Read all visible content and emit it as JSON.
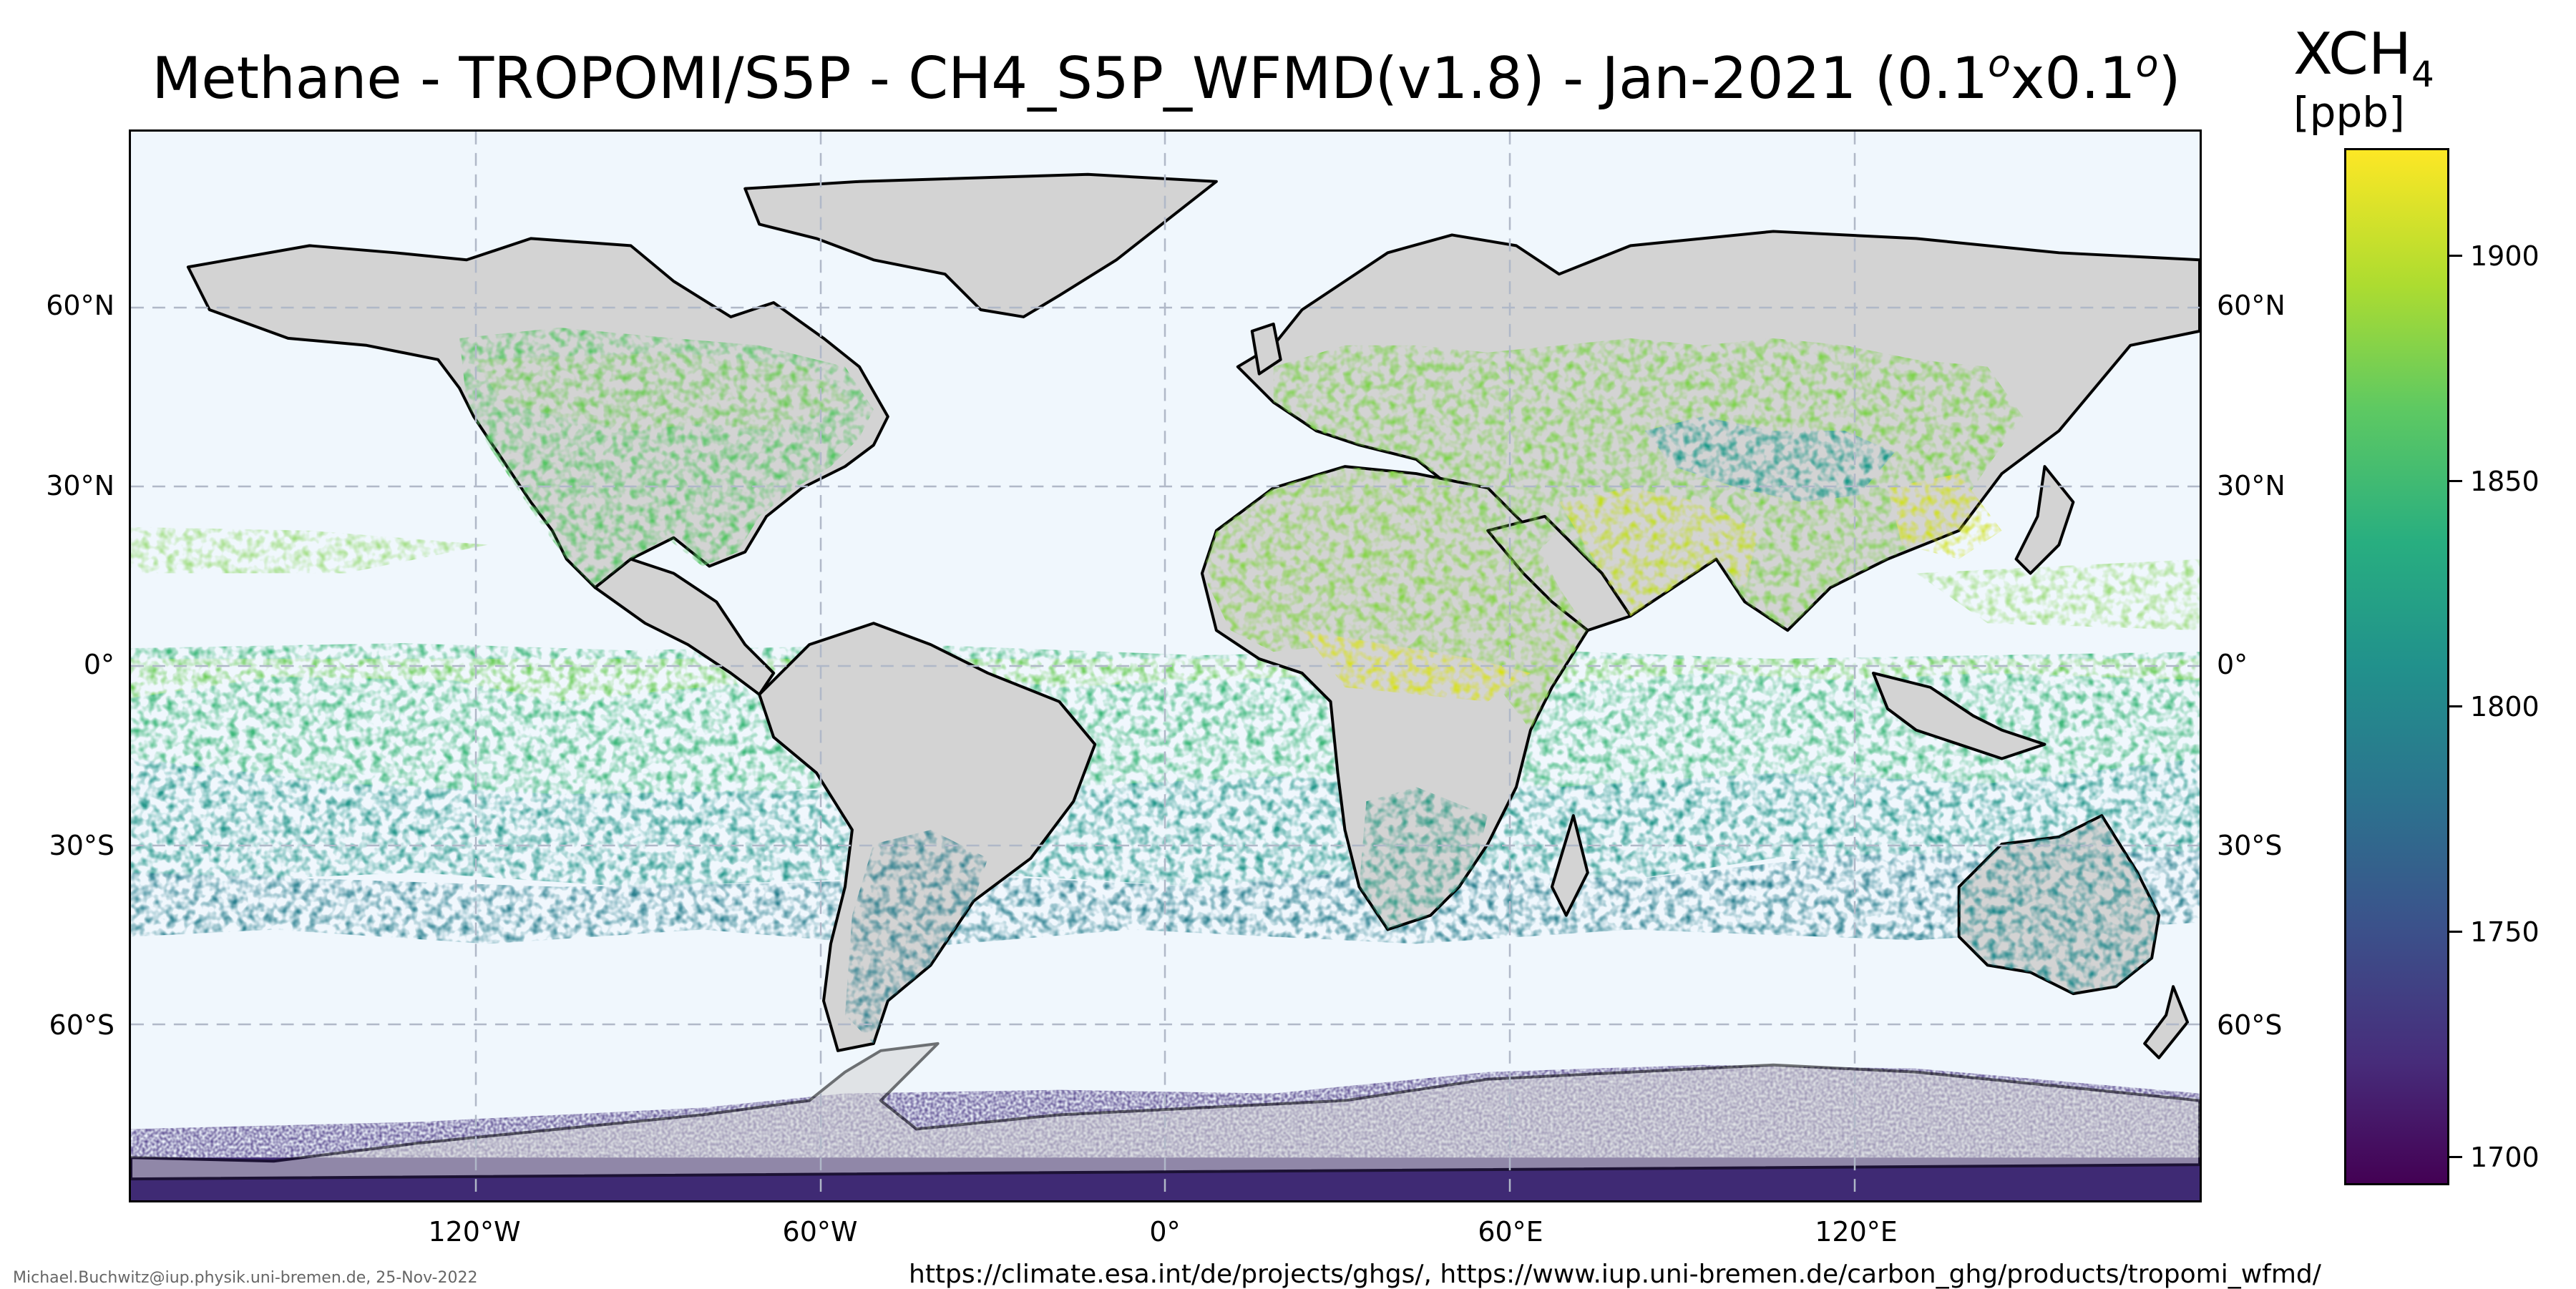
{
  "title": {
    "prefix": "Methane - TROPOMI/S5P - CH4_S5P_WFMD(v1.8) - Jan-2021 (0.1",
    "sup1": "o",
    "middle": "x0.1",
    "sup2": "o",
    "suffix": ")"
  },
  "colorbar": {
    "title_main": "XCH",
    "title_sub": "4",
    "units": "[ppb]",
    "ticks": [
      "1900",
      "1850",
      "1800",
      "1750",
      "1700"
    ],
    "range": [
      1693,
      1923
    ],
    "colormap": "viridis"
  },
  "lat_labels": [
    "60°N",
    "30°N",
    "0°",
    "30°S",
    "60°S"
  ],
  "lon_labels": [
    "120°W",
    "60°W",
    "0°",
    "60°E",
    "120°E"
  ],
  "footer": {
    "credit": "Michael.Buchwitz@iup.physik.uni-bremen.de, 25-Nov-2022",
    "urls": "https://climate.esa.int/de/projects/ghgs/, https://www.iup.uni-bremen.de/carbon_ghg/products/tropomi_wfmd/"
  },
  "colors": {
    "ocean": "#f0f7fd",
    "land_nodata": "#d3d3d3",
    "coastline": "#000000",
    "gridline": "#b0b8c8"
  }
}
